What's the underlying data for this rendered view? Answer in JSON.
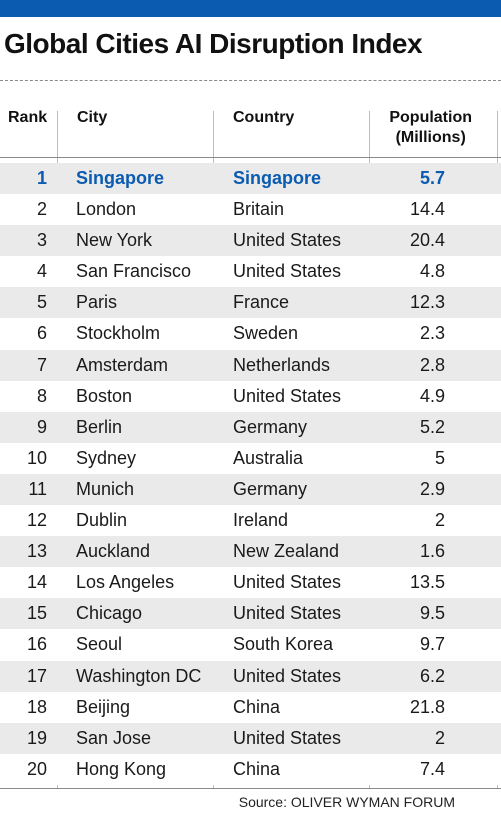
{
  "title": "Global Cities AI Disruption Index",
  "accent_color": "#0b5bb0",
  "columns": {
    "rank": "Rank",
    "city": "City",
    "country": "Country",
    "population_line1": "Population",
    "population_line2": "(Millions)"
  },
  "rows": [
    {
      "rank": "1",
      "city": "Singapore",
      "country": "Singapore",
      "population": "5.7",
      "highlight": true
    },
    {
      "rank": "2",
      "city": "London",
      "country": "Britain",
      "population": "14.4"
    },
    {
      "rank": "3",
      "city": "New York",
      "country": "United States",
      "population": "20.4"
    },
    {
      "rank": "4",
      "city": "San Francisco",
      "country": "United States",
      "population": "4.8"
    },
    {
      "rank": "5",
      "city": "Paris",
      "country": "France",
      "population": "12.3"
    },
    {
      "rank": "6",
      "city": "Stockholm",
      "country": "Sweden",
      "population": "2.3"
    },
    {
      "rank": "7",
      "city": "Amsterdam",
      "country": "Netherlands",
      "population": "2.8"
    },
    {
      "rank": "8",
      "city": "Boston",
      "country": "United States",
      "population": "4.9"
    },
    {
      "rank": "9",
      "city": "Berlin",
      "country": "Germany",
      "population": "5.2"
    },
    {
      "rank": "10",
      "city": "Sydney",
      "country": "Australia",
      "population": "5"
    },
    {
      "rank": "11",
      "city": "Munich",
      "country": "Germany",
      "population": "2.9"
    },
    {
      "rank": "12",
      "city": "Dublin",
      "country": "Ireland",
      "population": "2"
    },
    {
      "rank": "13",
      "city": "Auckland",
      "country": "New Zealand",
      "population": "1.6"
    },
    {
      "rank": "14",
      "city": "Los Angeles",
      "country": "United States",
      "population": "13.5"
    },
    {
      "rank": "15",
      "city": "Chicago",
      "country": "United States",
      "population": "9.5"
    },
    {
      "rank": "16",
      "city": "Seoul",
      "country": "South Korea",
      "population": "9.7"
    },
    {
      "rank": "17",
      "city": "Washington DC",
      "country": "United States",
      "population": "6.2"
    },
    {
      "rank": "18",
      "city": "Beijing",
      "country": "China",
      "population": "21.8"
    },
    {
      "rank": "19",
      "city": "San Jose",
      "country": "United States",
      "population": "2"
    },
    {
      "rank": "20",
      "city": "Hong Kong",
      "country": "China",
      "population": "7.4"
    }
  ],
  "source": "Source: OLIVER WYMAN FORUM"
}
